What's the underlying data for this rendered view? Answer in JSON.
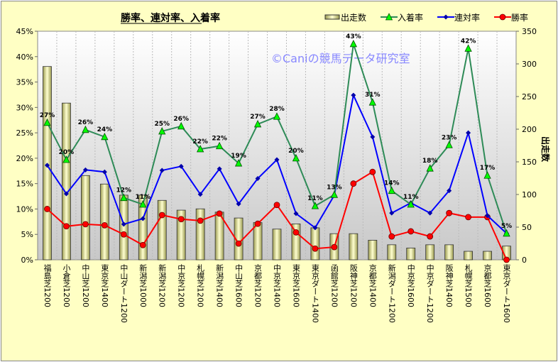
{
  "chart_data": {
    "type": "bar+line",
    "title": "勝率、連対率、入着率",
    "watermark": "©Caniの競馬データ研究室",
    "ylabel_left": "",
    "ylabel_right": "出走数",
    "ylim_left": [
      0,
      45
    ],
    "ylim_right": [
      0,
      350
    ],
    "left_ticks": [
      "0%",
      "5%",
      "10%",
      "15%",
      "20%",
      "25%",
      "30%",
      "35%",
      "40%",
      "45%"
    ],
    "right_ticks": [
      "0",
      "50",
      "100",
      "150",
      "200",
      "250",
      "300",
      "350"
    ],
    "legend_position": "top-right",
    "colors": {
      "bars": "#f0f0a0",
      "入着率": "#2e8b57",
      "連対率": "#0000ff",
      "勝率": "#ff0000"
    },
    "categories": [
      "福島芝1200",
      "小倉芝1200",
      "中山芝1200",
      "東京芝1400",
      "中山ダート1200",
      "新潟芝1000",
      "新潟芝1200",
      "中京芝1200",
      "札幌芝1200",
      "新潟芝1400",
      "中山芝1600",
      "京都芝1200",
      "中京芝1400",
      "東京芝1600",
      "東京ダート1400",
      "函館芝1200",
      "阪神芝1200",
      "京都芝1400",
      "新潟ダート1200",
      "中京芝1600",
      "中京ダート1200",
      "阪神芝1400",
      "札幌芝1500",
      "京都芝1600",
      "東京ダート1600"
    ],
    "series": [
      {
        "name": "出走数",
        "axis": "right",
        "type": "bar",
        "values": [
          296,
          240,
          129,
          116,
          99,
          99,
          91,
          76,
          78,
          73,
          64,
          57,
          47,
          55,
          49,
          40,
          40,
          30,
          23,
          18,
          23,
          23,
          13,
          13,
          21
        ]
      },
      {
        "name": "入着率",
        "axis": "left",
        "type": "line",
        "values": [
          27,
          19.7,
          25.6,
          24.2,
          12.2,
          10.9,
          25.3,
          26.3,
          21.8,
          22.4,
          19,
          26.7,
          28.2,
          20,
          10.6,
          12.8,
          42.5,
          31,
          13.6,
          10.9,
          18,
          22.6,
          41.6,
          16.6,
          5.2
        ],
        "labels": [
          "27%",
          "20%",
          "26%",
          "24%",
          "12%",
          "11%",
          "25%",
          "26%",
          "22%",
          "22%",
          "19%",
          "27%",
          "28%",
          "20%",
          "11%",
          "13%",
          "43%",
          "31%",
          "14%",
          "11%",
          "18%",
          "23%",
          "42%",
          "17%",
          "5%"
        ]
      },
      {
        "name": "連対率",
        "axis": "left",
        "type": "line",
        "values": [
          18.6,
          13,
          17.7,
          17.3,
          7,
          8.1,
          17.6,
          18.4,
          12.9,
          17.9,
          11,
          16,
          19.7,
          9.1,
          6.3,
          12.7,
          32.4,
          24.2,
          9.2,
          11.2,
          9.2,
          13.6,
          25,
          8.7,
          5.2
        ]
      },
      {
        "name": "勝率",
        "axis": "left",
        "type": "line",
        "values": [
          10,
          6.6,
          7,
          6.8,
          5,
          2.9,
          8.8,
          8,
          7.7,
          9.1,
          3.2,
          7.1,
          10.8,
          5.4,
          2.2,
          2.5,
          15,
          17.3,
          4.6,
          5.6,
          4.6,
          9.2,
          8.4,
          8.4,
          0
        ]
      }
    ]
  }
}
